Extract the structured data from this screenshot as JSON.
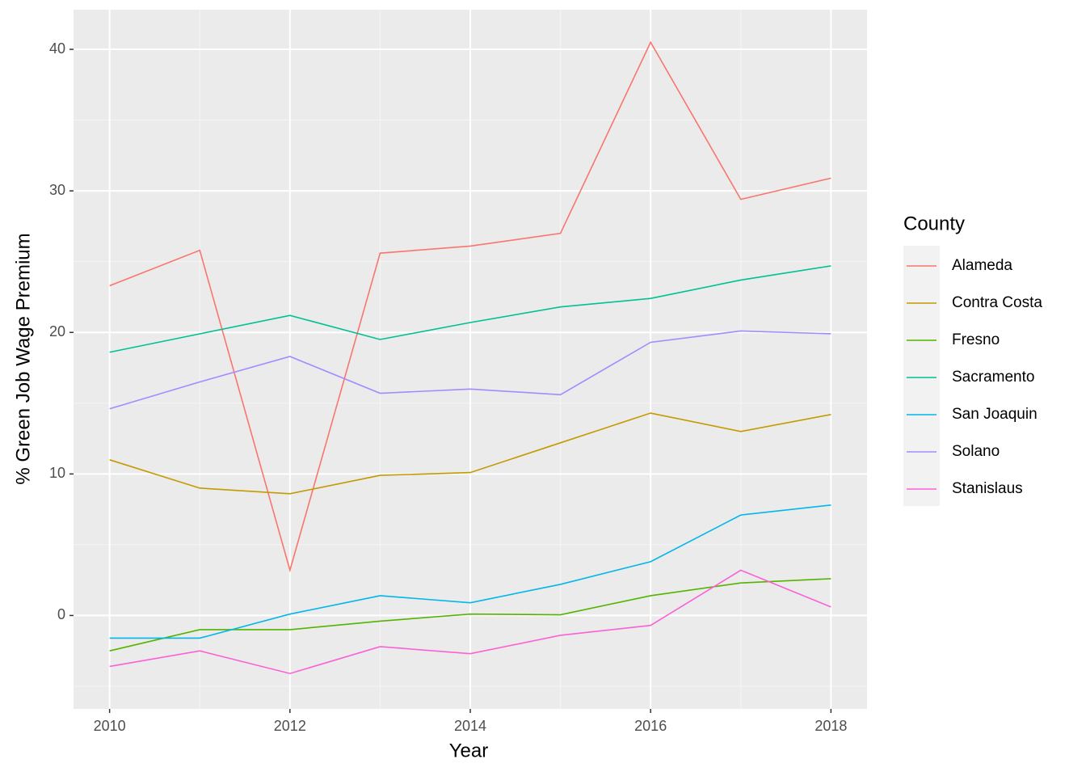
{
  "chart_data": {
    "type": "line",
    "x_label": "Year",
    "y_label": "% Green Job Wage Premium",
    "legend_title": "County",
    "x": [
      2010,
      2011,
      2012,
      2013,
      2014,
      2015,
      2016,
      2017,
      2018
    ],
    "xlim": [
      2009.6,
      2018.4
    ],
    "xticks": [
      2010,
      2012,
      2014,
      2016,
      2018
    ],
    "ylim": [
      -6.6,
      42.8
    ],
    "yticks": [
      0,
      10,
      20,
      30,
      40
    ],
    "grid": true,
    "legend": "right",
    "series": [
      {
        "name": "Alameda",
        "color": "#F8766D",
        "values": [
          23.3,
          25.8,
          3.2,
          25.6,
          26.1,
          27.0,
          40.5,
          29.4,
          30.9
        ]
      },
      {
        "name": "Contra Costa",
        "color": "#C49A00",
        "values": [
          11.0,
          9.0,
          8.6,
          9.9,
          10.1,
          12.2,
          14.3,
          13.0,
          14.2
        ]
      },
      {
        "name": "Fresno",
        "color": "#53B400",
        "values": [
          -2.5,
          -1.0,
          -1.0,
          -0.4,
          0.1,
          0.05,
          1.4,
          2.3,
          2.6
        ]
      },
      {
        "name": "Sacramento",
        "color": "#00C094",
        "values": [
          18.6,
          19.9,
          21.2,
          19.5,
          20.7,
          21.8,
          22.4,
          23.7,
          24.7
        ]
      },
      {
        "name": "San Joaquin",
        "color": "#00B6EB",
        "values": [
          -1.6,
          -1.6,
          0.1,
          1.4,
          0.9,
          2.2,
          3.8,
          7.1,
          7.8
        ]
      },
      {
        "name": "Solano",
        "color": "#A58AFF",
        "values": [
          14.6,
          16.5,
          18.3,
          15.7,
          16.0,
          15.6,
          19.3,
          20.1,
          19.9
        ]
      },
      {
        "name": "Stanislaus",
        "color": "#FB61D7",
        "values": [
          -3.6,
          -2.5,
          -4.1,
          -2.2,
          -2.7,
          -1.4,
          -0.7,
          3.2,
          0.6
        ]
      }
    ]
  }
}
